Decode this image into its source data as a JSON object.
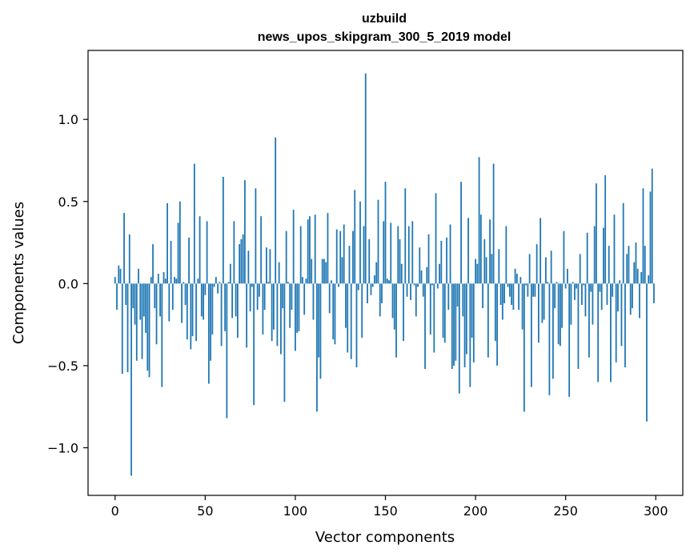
{
  "chart_data": {
    "type": "bar",
    "title": "uzbuild",
    "subtitle": "news_upos_skipgram_300_5_2019 model",
    "xlabel": "Vector components",
    "ylabel": "Components values",
    "xlim": [
      -15,
      315
    ],
    "ylim": [
      -1.29,
      1.42
    ],
    "x_ticks": [
      0,
      50,
      100,
      150,
      200,
      250,
      300
    ],
    "x_tick_labels": [
      "0",
      "50",
      "100",
      "150",
      "200",
      "250",
      "300"
    ],
    "y_ticks": [
      -1.0,
      -0.5,
      0.0,
      0.5,
      1.0
    ],
    "y_tick_labels": [
      "−1.0",
      "−0.5",
      "0.0",
      "0.5",
      "1.0"
    ],
    "bar_color": "#1f77b4",
    "grid": false,
    "values": [
      0.04,
      -0.16,
      0.11,
      0.09,
      -0.55,
      0.43,
      -0.13,
      -0.54,
      0.3,
      -1.17,
      -0.15,
      -0.25,
      -0.47,
      0.09,
      -0.22,
      -0.46,
      -0.2,
      -0.3,
      -0.53,
      -0.57,
      0.04,
      0.24,
      -0.15,
      -0.37,
      0.06,
      -0.2,
      -0.63,
      0.07,
      0.03,
      0.49,
      -0.23,
      0.26,
      -0.16,
      0.04,
      0.03,
      0.37,
      0.5,
      -0.24,
      0.01,
      -0.13,
      -0.34,
      0.28,
      -0.4,
      -0.32,
      0.73,
      -0.35,
      0.03,
      0.41,
      -0.2,
      -0.22,
      -0.07,
      0.38,
      -0.61,
      -0.47,
      -0.31,
      -0.02,
      0.04,
      -0.06,
      0.01,
      -0.38,
      0.65,
      -0.29,
      -0.82,
      0.01,
      0.12,
      -0.21,
      0.38,
      -0.2,
      -0.33,
      0.24,
      0.27,
      0.3,
      0.63,
      -0.39,
      0.2,
      -0.17,
      -0.02,
      -0.74,
      0.58,
      -0.16,
      -0.08,
      0.41,
      -0.31,
      -0.16,
      0.22,
      0.01,
      0.21,
      -0.35,
      -0.28,
      0.89,
      -0.38,
      0.13,
      -0.43,
      -0.15,
      -0.72,
      0.32,
      0.01,
      -0.27,
      -0.16,
      0.45,
      -0.41,
      -0.3,
      -0.29,
      0.35,
      0.04,
      -0.19,
      0.03,
      0.39,
      0.41,
      0.15,
      -0.22,
      0.42,
      -0.78,
      -0.45,
      -0.58,
      0.15,
      0.15,
      0.13,
      0.43,
      -0.18,
      0.02,
      -0.34,
      -0.37,
      0.33,
      -0.02,
      0.32,
      0.16,
      0.36,
      -0.27,
      -0.42,
      0.23,
      -0.46,
      0.32,
      0.57,
      -0.51,
      -0.04,
      0.5,
      -0.33,
      0.35,
      1.28,
      -0.12,
      0.27,
      -0.07,
      -0.02,
      0.05,
      0.13,
      0.51,
      -0.2,
      -0.12,
      0.38,
      0.62,
      0.03,
      0.02,
      0.37,
      -0.21,
      -0.28,
      -0.45,
      0.35,
      0.27,
      0.12,
      -0.35,
      0.58,
      -0.08,
      0.35,
      -0.1,
      0.38,
      -0.01,
      -0.2,
      -0.02,
      0.22,
      0.08,
      -0.08,
      -0.52,
      0.1,
      0.3,
      -0.31,
      -0.01,
      -0.42,
      0.55,
      -0.03,
      0.12,
      0.26,
      -0.33,
      -0.36,
      0.28,
      -0.16,
      0.36,
      -0.52,
      -0.5,
      -0.47,
      -0.14,
      -0.67,
      0.62,
      -0.2,
      -0.51,
      -0.43,
      0.4,
      -0.63,
      -0.33,
      -0.48,
      0.15,
      0.12,
      0.77,
      0.42,
      -0.15,
      0.27,
      0.16,
      -0.45,
      0.39,
      0.18,
      0.73,
      -0.35,
      -0.5,
      0.21,
      -0.13,
      -0.22,
      -0.12,
      0.35,
      -0.02,
      -0.08,
      -0.13,
      -0.16,
      0.09,
      0.06,
      -0.16,
      0.04,
      -0.28,
      -0.78,
      -0.01,
      -0.08,
      0.18,
      -0.63,
      -0.08,
      -0.08,
      0.24,
      -0.36,
      0.4,
      -0.24,
      -0.22,
      0.16,
      0.01,
      -0.68,
      0.2,
      -0.58,
      -0.15,
      0.01,
      -0.37,
      -0.38,
      -0.27,
      0.32,
      -0.03,
      0.09,
      -0.69,
      -0.25,
      0.01,
      -0.1,
      -0.03,
      -0.52,
      0.18,
      -0.13,
      -0.01,
      -0.2,
      0.31,
      -0.45,
      -0.05,
      -0.25,
      0.35,
      0.61,
      -0.6,
      -0.05,
      -0.16,
      0.34,
      0.66,
      -0.13,
      0.23,
      -0.6,
      -0.08,
      0.42,
      -0.48,
      -0.17,
      0.02,
      -0.38,
      0.49,
      -0.51,
      0.18,
      0.23,
      -0.19,
      -0.15,
      0.13,
      0.25,
      0.09,
      -0.21,
      0.07,
      0.58,
      0.23,
      -0.84,
      0.05,
      0.56,
      0.7,
      -0.12
    ]
  }
}
